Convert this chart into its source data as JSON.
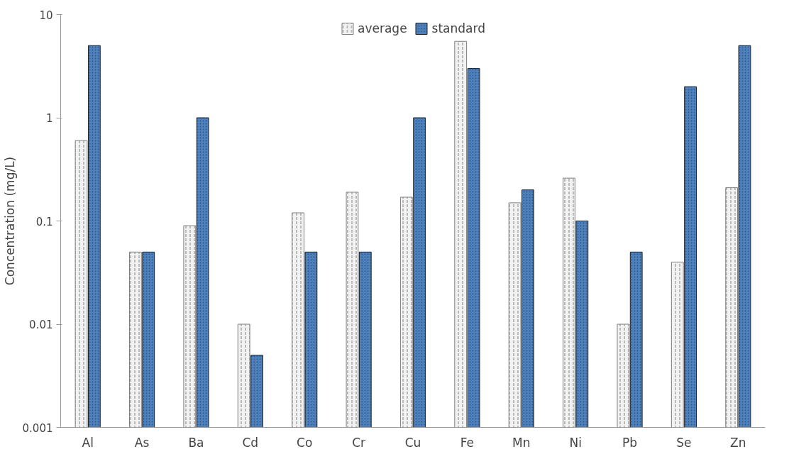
{
  "chart_data": {
    "type": "bar",
    "ylabel": "Concentration (mg/L)",
    "categories": [
      "Al",
      "As",
      "Ba",
      "Cd",
      "Co",
      "Cr",
      "Cu",
      "Fe",
      "Mn",
      "Ni",
      "Pb",
      "Se",
      "Zn"
    ],
    "series": [
      {
        "name": "average",
        "color": "#f2f2f2",
        "values": [
          0.6,
          0.05,
          0.09,
          0.01,
          0.12,
          0.19,
          0.17,
          5.5,
          0.15,
          0.26,
          0.01,
          0.04,
          0.21
        ]
      },
      {
        "name": "standard",
        "color": "#4f81bd",
        "values": [
          5,
          0.05,
          1,
          0.005,
          0.05,
          0.05,
          1,
          3,
          0.2,
          0.1,
          0.05,
          2,
          5
        ]
      }
    ],
    "log": "y",
    "ylim": [
      0.001,
      10
    ],
    "yticks": [
      0.001,
      0.01,
      {
        "value": 0.1,
        "label": "0.1"
      },
      {
        "value": 1,
        "label": "1"
      },
      {
        "value": 10,
        "label": "10"
      }
    ],
    "legend": "top",
    "grid": false
  }
}
